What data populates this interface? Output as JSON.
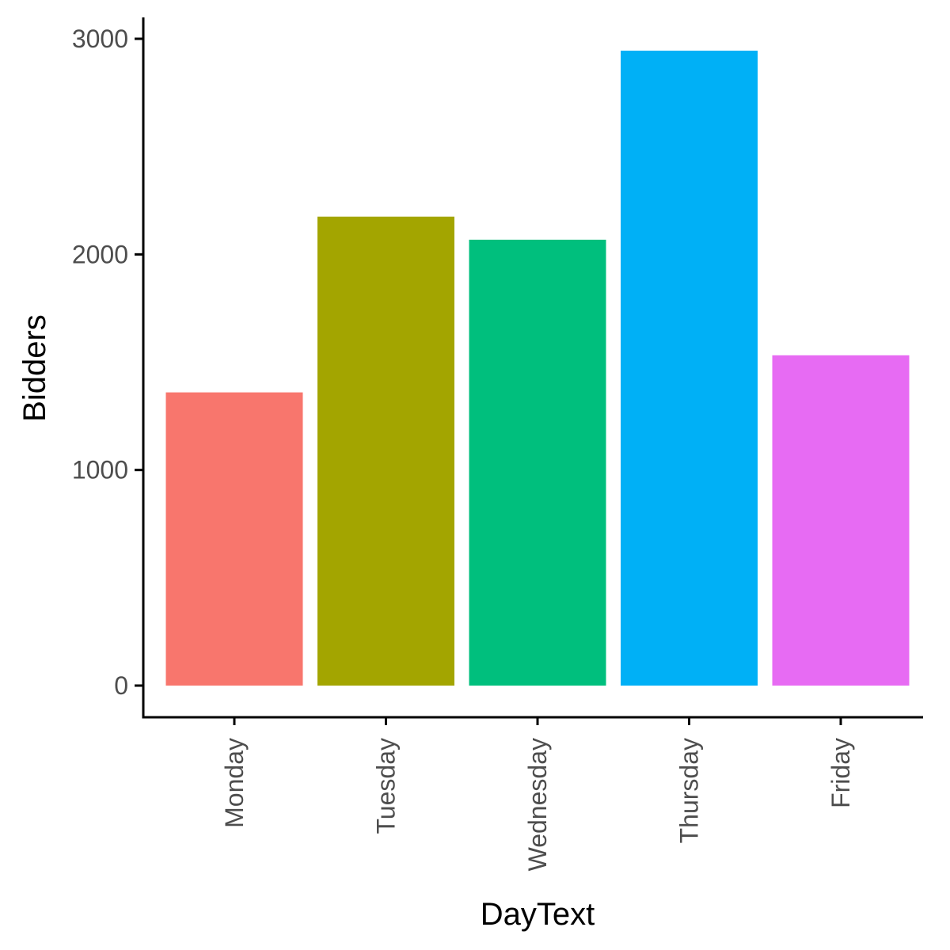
{
  "chart_data": {
    "type": "bar",
    "categories": [
      "Monday",
      "Tuesday",
      "Wednesday",
      "Thursday",
      "Friday"
    ],
    "values": [
      1360,
      2175,
      2068,
      2945,
      1532
    ],
    "colors": [
      "#F8766D",
      "#A3A500",
      "#00BF7D",
      "#00B0F6",
      "#E76BF3"
    ],
    "xlabel": "DayText",
    "ylabel": "Bidders",
    "ylim": [
      0,
      3000
    ],
    "yticks": [
      0,
      1000,
      2000,
      3000
    ],
    "ytick_labels": [
      "0",
      "1000",
      "2000",
      "3000"
    ],
    "grid": false,
    "legend": "none"
  }
}
